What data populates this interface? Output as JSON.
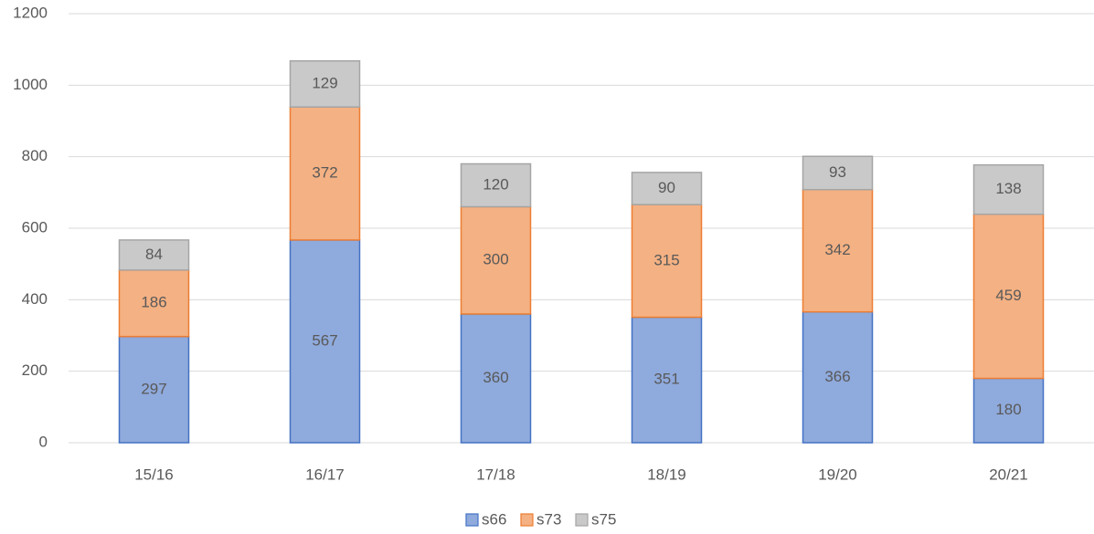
{
  "chart_data": {
    "type": "stacked_bar",
    "categories": [
      "15/16",
      "16/17",
      "17/18",
      "18/19",
      "19/20",
      "20/21"
    ],
    "series": [
      {
        "name": "s66",
        "color": "#8faadc",
        "values": [
          297,
          567,
          360,
          351,
          366,
          180
        ]
      },
      {
        "name": "s73",
        "color": "#f4b183",
        "values": [
          186,
          372,
          300,
          315,
          342,
          459
        ]
      },
      {
        "name": "s75",
        "color": "#c9c9c9",
        "values": [
          84,
          129,
          120,
          90,
          93,
          138
        ]
      }
    ],
    "ylim": [
      0,
      1200
    ],
    "yticks": [
      0,
      200,
      400,
      600,
      800,
      1000,
      1200
    ],
    "grid": true,
    "legend": "bottom"
  }
}
